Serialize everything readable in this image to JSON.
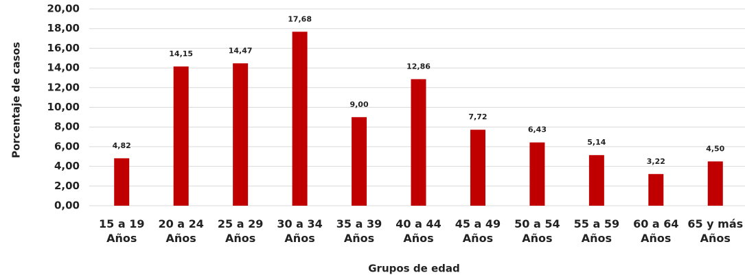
{
  "chart_data": {
    "type": "bar",
    "x_label": "Grupos de edad",
    "y_label": "Porcentaje de casos",
    "categories": [
      "15 a 19 Años",
      "20 a 24 Años",
      "25 a 29 Años",
      "30 a 34 Años",
      "35 a 39 Años",
      "40 a 44 Años",
      "45 a 49 Años",
      "50 a 54 Años",
      "55 a 59 Años",
      "60 a 64 Años",
      "65 y más Años"
    ],
    "values": [
      4.82,
      14.15,
      14.47,
      17.68,
      9.0,
      12.86,
      7.72,
      6.43,
      5.14,
      3.22,
      4.5
    ],
    "value_labels": [
      "4,82",
      "14,15",
      "14,47",
      "17,68",
      "9,00",
      "12,86",
      "7,72",
      "6,43",
      "5,14",
      "3,22",
      "4,50"
    ],
    "color": "#c00000",
    "ylim": [
      0,
      20
    ],
    "yticks": [
      {
        "value": 0,
        "label": "0,00"
      },
      {
        "value": 2,
        "label": "2,00"
      },
      {
        "value": 4,
        "label": "4,00"
      },
      {
        "value": 6,
        "label": "6,00"
      },
      {
        "value": 8,
        "label": "8,00"
      },
      {
        "value": 10,
        "label": "10,00"
      },
      {
        "value": 12,
        "label": "12,00"
      },
      {
        "value": 14,
        "label": "14,00"
      },
      {
        "value": 16,
        "label": "16,00"
      },
      {
        "value": 18,
        "label": "18,00"
      },
      {
        "value": 20,
        "label": "20,00"
      }
    ],
    "grid": true
  }
}
